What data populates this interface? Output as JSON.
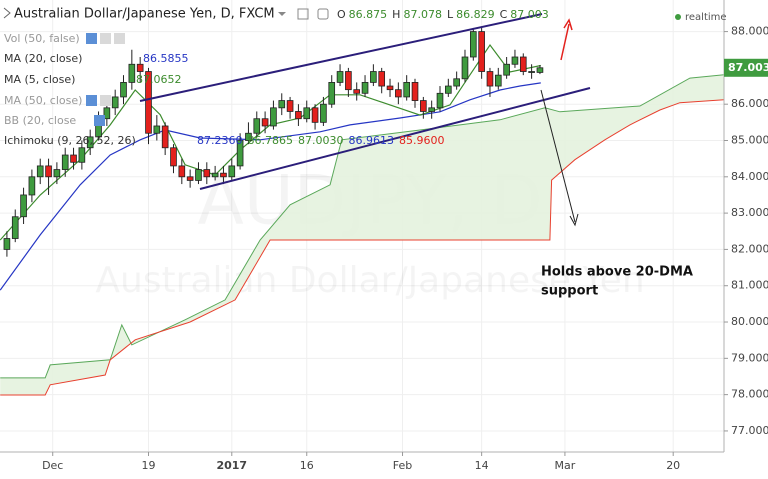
{
  "chart_data": {
    "type": "candlestick",
    "title": "Australian Dollar/Japanese Yen, D, FXCM",
    "watermark": [
      "AUDJPY, D",
      "Australian Dollar/Japanese Yen"
    ],
    "status": "realtime",
    "ohlc_labels": [
      "O",
      "H",
      "L",
      "C"
    ],
    "x": [
      0,
      1,
      2,
      3,
      4,
      5,
      6,
      7,
      8,
      9,
      10,
      11,
      12,
      13,
      14,
      15,
      16,
      17,
      18,
      19,
      20,
      21,
      22,
      23,
      24,
      25,
      26,
      27,
      28,
      29,
      30,
      31,
      32,
      33,
      34,
      35,
      36,
      37,
      38,
      39,
      40,
      41,
      42,
      43,
      44,
      45,
      46,
      47,
      48,
      49,
      50,
      51,
      52,
      53,
      54,
      55,
      56,
      57,
      58,
      59,
      60,
      61,
      62,
      63,
      64
    ],
    "open": [
      82.0,
      82.3,
      82.9,
      83.5,
      84.0,
      84.3,
      84.0,
      84.2,
      84.6,
      84.4,
      84.8,
      85.1,
      85.6,
      85.9,
      86.2,
      86.6,
      87.1,
      86.9,
      85.2,
      85.4,
      84.8,
      84.3,
      84.0,
      83.9,
      84.2,
      84.0,
      84.1,
      84.0,
      84.3,
      85.0,
      85.2,
      85.6,
      85.4,
      85.9,
      86.1,
      85.8,
      85.6,
      85.9,
      85.5,
      86.0,
      86.6,
      86.9,
      86.4,
      86.3,
      86.6,
      86.9,
      86.5,
      86.4,
      86.2,
      86.6,
      86.1,
      85.8,
      85.9,
      86.3,
      86.5,
      86.7,
      87.3,
      88.0,
      86.9,
      86.5,
      86.8,
      87.1,
      87.3,
      86.9,
      86.875
    ],
    "high": [
      82.5,
      83.1,
      83.7,
      84.2,
      84.5,
      84.5,
      84.4,
      84.8,
      84.8,
      85.0,
      85.3,
      85.8,
      86.1,
      86.4,
      86.8,
      87.5,
      87.3,
      87.0,
      85.7,
      85.5,
      84.9,
      84.5,
      84.2,
      84.4,
      84.4,
      84.3,
      84.3,
      84.5,
      85.2,
      85.5,
      85.8,
      85.8,
      86.1,
      86.3,
      86.2,
      86.0,
      86.1,
      86.0,
      86.2,
      86.8,
      87.1,
      87.0,
      86.6,
      86.8,
      87.1,
      87.0,
      86.7,
      86.6,
      86.8,
      86.7,
      86.2,
      86.1,
      86.5,
      86.7,
      86.9,
      87.5,
      88.1,
      88.1,
      87.0,
      87.0,
      87.3,
      87.5,
      87.4,
      87.1,
      87.078
    ],
    "low": [
      81.8,
      82.2,
      82.7,
      83.3,
      83.8,
      83.5,
      83.8,
      84.0,
      84.2,
      84.2,
      84.6,
      85.0,
      85.4,
      85.7,
      86.0,
      86.4,
      86.6,
      84.9,
      85.0,
      84.6,
      84.1,
      83.8,
      83.7,
      83.8,
      83.8,
      83.9,
      83.8,
      83.9,
      84.2,
      84.9,
      85.1,
      85.2,
      85.3,
      85.7,
      85.6,
      85.4,
      85.5,
      85.3,
      85.4,
      85.9,
      86.5,
      86.2,
      86.1,
      86.2,
      86.5,
      86.3,
      86.2,
      86.0,
      86.1,
      85.9,
      85.6,
      85.6,
      85.8,
      86.2,
      86.4,
      86.6,
      87.2,
      86.7,
      86.2,
      86.4,
      86.7,
      87.0,
      86.8,
      86.7,
      86.829
    ],
    "close": [
      82.3,
      82.9,
      83.5,
      84.0,
      84.3,
      84.0,
      84.2,
      84.6,
      84.4,
      84.8,
      85.1,
      85.6,
      85.9,
      86.2,
      86.6,
      87.1,
      86.9,
      85.2,
      85.4,
      84.8,
      84.3,
      84.0,
      83.9,
      84.2,
      84.0,
      84.1,
      84.0,
      84.3,
      85.0,
      85.2,
      85.6,
      85.4,
      85.9,
      86.1,
      85.8,
      85.6,
      85.9,
      85.5,
      86.0,
      86.6,
      86.9,
      86.4,
      86.3,
      86.6,
      86.9,
      86.5,
      86.4,
      86.2,
      86.6,
      86.1,
      85.8,
      85.9,
      86.3,
      86.5,
      86.7,
      87.3,
      88.0,
      86.9,
      86.5,
      86.8,
      87.1,
      87.3,
      86.9,
      86.9,
      87.003
    ],
    "up_color": "#3f9b3f",
    "down_color": "#e3211d",
    "series": [
      {
        "name": "MA (20, close)",
        "color": "#2636c4",
        "x": [
          -0.8,
          4.0,
          8.8,
          12.4,
          16.0,
          19.0,
          23.2,
          30.4,
          37.6,
          41.2,
          47.2,
          52.0,
          55.6,
          59.2,
          61.6,
          64.1
        ],
        "values": [
          80.88,
          82.4,
          83.78,
          84.6,
          85.02,
          85.29,
          85.07,
          85.02,
          85.24,
          85.43,
          85.62,
          85.79,
          86.12,
          86.39,
          86.5,
          86.5855
        ]
      },
      {
        "name": "MA (5, close)",
        "color": "#3d8c2e",
        "x": [
          -0.8,
          4.0,
          8.8,
          12.4,
          15.4,
          18.4,
          21.4,
          25.0,
          28.0,
          31.6,
          35.2,
          38.8,
          42.4,
          46.0,
          49.6,
          53.2,
          55.6,
          58.0,
          60.4,
          64.1
        ],
        "values": [
          82.26,
          83.5,
          84.47,
          85.43,
          86.39,
          85.71,
          84.33,
          84.05,
          84.74,
          85.43,
          85.62,
          86.26,
          86.26,
          85.98,
          85.7,
          85.98,
          86.81,
          87.63,
          86.89,
          87.0652
        ]
      }
    ],
    "cloud": {
      "fill": "#e4f2de",
      "span_a": {
        "color": "#5aa85a",
        "x": [
          -0.8,
          4.6,
          5.2,
          12.4,
          13.8,
          15.0,
          21.4,
          26.2,
          30.4,
          34.0,
          38.8,
          40.2,
          49.6,
          59.2,
          64.6,
          66.4,
          76.0,
          82.0,
          86.1
        ],
        "values": [
          78.46,
          78.46,
          78.82,
          78.96,
          79.92,
          79.37,
          80.06,
          80.61,
          82.26,
          83.23,
          83.78,
          85.02,
          85.29,
          85.57,
          85.9,
          85.79,
          85.95,
          86.72,
          86.81
        ]
      },
      "span_b": {
        "color": "#e8402f",
        "x": [
          -0.8,
          4.6,
          5.2,
          11.8,
          12.4,
          15.4,
          22.0,
          27.4,
          31.6,
          65.2,
          65.4,
          68.2,
          71.8,
          74.8,
          78.4,
          80.8,
          86.1
        ],
        "values": [
          77.99,
          77.99,
          78.27,
          78.54,
          78.96,
          79.51,
          80.0,
          80.61,
          82.26,
          82.26,
          83.91,
          84.47,
          85.02,
          85.43,
          85.84,
          86.04,
          86.12
        ]
      }
    },
    "hidden_indicators": [
      "Vol (50, false)",
      "MA (50, close)",
      "BB (20, close"
    ],
    "ichimoku": {
      "label": "Ichimoku (9, 26, 52, 26)",
      "values": [
        {
          "value": 87.236,
          "label": "87.2360"
        },
        {
          "value": 86.7865,
          "label": "86.7865"
        },
        {
          "value": 87.003,
          "label": "87.0030"
        },
        86.9613,
        {
          "value": 85.96,
          "label": "85.9600"
        }
      ],
      "colors": [
        "#2636c4",
        "#3d8c2e",
        "#3d8c2e",
        "#2636c4",
        "#e3211d"
      ]
    },
    "annotation": [
      "Holds above 20-DMA",
      "support"
    ],
    "xlim": [
      -0.83,
      86.1
    ],
    "xticks": [
      {
        "value": 5.5,
        "label": "Dec"
      },
      {
        "value": 17,
        "label": "19"
      },
      {
        "value": 27,
        "label": "2017"
      },
      {
        "value": 36,
        "label": "16"
      },
      {
        "value": 47.5,
        "label": "Feb"
      },
      {
        "value": 57,
        "label": "14"
      },
      {
        "value": 67,
        "label": "Mar"
      },
      {
        "value": 80,
        "label": "20"
      }
    ],
    "ylim": [
      76.42,
      88.87
    ],
    "yticks": [
      {
        "value": 77,
        "label": "77.000"
      },
      {
        "value": 78,
        "label": "78.000"
      },
      {
        "value": 79,
        "label": "79.000"
      },
      {
        "value": 80,
        "label": "80.000"
      },
      {
        "value": 81,
        "label": "81.000"
      },
      {
        "value": 82,
        "label": "82.000"
      },
      {
        "value": 83,
        "label": "83.000"
      },
      {
        "value": 84,
        "label": "84.000"
      },
      {
        "value": 85,
        "label": "85.000"
      },
      {
        "value": 86,
        "label": "86.000"
      },
      {
        "value": 88,
        "label": "88.000"
      }
    ],
    "grid": true
  }
}
